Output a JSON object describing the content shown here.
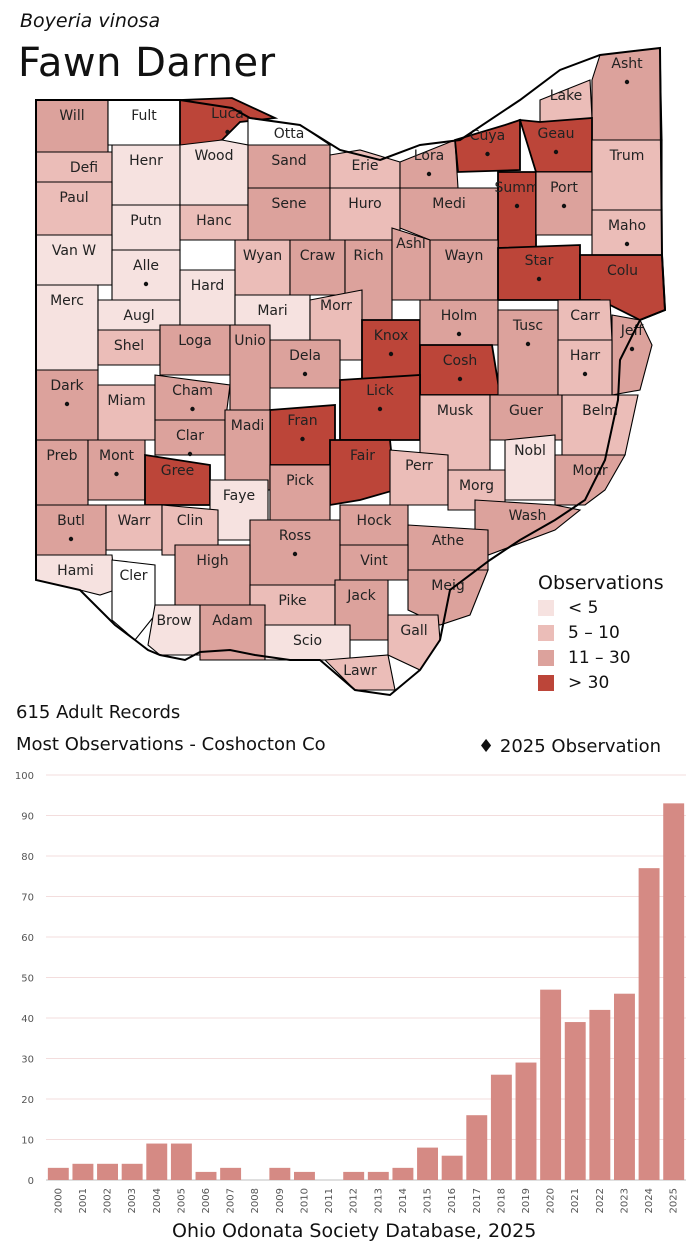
{
  "header": {
    "species": "Boyeria vinosa",
    "common_name": "Fawn Darner"
  },
  "colors": {
    "lt5": "#f6e2e0",
    "c5_10": "#ebbdb8",
    "c11_30": "#dca29c",
    "gt30": "#bc4539",
    "none": "#ffffff",
    "bar": "#d58a84"
  },
  "legend": {
    "title": "Observations",
    "items": [
      {
        "label": "< 5",
        "class": "lt5"
      },
      {
        "label": "5 – 10",
        "class": "c5_10"
      },
      {
        "label": "11 – 30",
        "class": "c11_30"
      },
      {
        "label": "> 30",
        "class": "gt30"
      }
    ]
  },
  "counties": [
    {
      "name": "Will",
      "class": "c11_30",
      "obs2025": false
    },
    {
      "name": "Fult",
      "class": "none",
      "obs2025": false
    },
    {
      "name": "Luca",
      "class": "gt30",
      "obs2025": true
    },
    {
      "name": "Otta",
      "class": "none",
      "obs2025": false
    },
    {
      "name": "Lake",
      "class": "c5_10",
      "obs2025": false
    },
    {
      "name": "Asht",
      "class": "c11_30",
      "obs2025": true
    },
    {
      "name": "Defi",
      "class": "c5_10",
      "obs2025": false
    },
    {
      "name": "Henr",
      "class": "lt5",
      "obs2025": false
    },
    {
      "name": "Wood",
      "class": "lt5",
      "obs2025": false
    },
    {
      "name": "Sand",
      "class": "c11_30",
      "obs2025": false
    },
    {
      "name": "Erie",
      "class": "c5_10",
      "obs2025": false
    },
    {
      "name": "Lora",
      "class": "c11_30",
      "obs2025": true
    },
    {
      "name": "Cuya",
      "class": "gt30",
      "obs2025": true
    },
    {
      "name": "Geau",
      "class": "gt30",
      "obs2025": true
    },
    {
      "name": "Trum",
      "class": "c5_10",
      "obs2025": false
    },
    {
      "name": "Paul",
      "class": "c5_10",
      "obs2025": false
    },
    {
      "name": "Putn",
      "class": "lt5",
      "obs2025": false
    },
    {
      "name": "Hanc",
      "class": "c5_10",
      "obs2025": false
    },
    {
      "name": "Sene",
      "class": "c11_30",
      "obs2025": false
    },
    {
      "name": "Huro",
      "class": "c5_10",
      "obs2025": false
    },
    {
      "name": "Medi",
      "class": "c11_30",
      "obs2025": false
    },
    {
      "name": "Summ",
      "class": "gt30",
      "obs2025": true
    },
    {
      "name": "Port",
      "class": "c11_30",
      "obs2025": true
    },
    {
      "name": "Maho",
      "class": "c5_10",
      "obs2025": true
    },
    {
      "name": "Van W",
      "class": "lt5",
      "obs2025": false
    },
    {
      "name": "Alle",
      "class": "lt5",
      "obs2025": true
    },
    {
      "name": "Wyan",
      "class": "c5_10",
      "obs2025": false
    },
    {
      "name": "Craw",
      "class": "c11_30",
      "obs2025": false
    },
    {
      "name": "Rich",
      "class": "c11_30",
      "obs2025": false
    },
    {
      "name": "Ashl",
      "class": "c11_30",
      "obs2025": false
    },
    {
      "name": "Wayn",
      "class": "c11_30",
      "obs2025": false
    },
    {
      "name": "Star",
      "class": "gt30",
      "obs2025": true
    },
    {
      "name": "Colu",
      "class": "gt30",
      "obs2025": false
    },
    {
      "name": "Merc",
      "class": "lt5",
      "obs2025": false
    },
    {
      "name": "Augl",
      "class": "lt5",
      "obs2025": false
    },
    {
      "name": "Hard",
      "class": "lt5",
      "obs2025": false
    },
    {
      "name": "Mari",
      "class": "lt5",
      "obs2025": false
    },
    {
      "name": "Morr",
      "class": "c5_10",
      "obs2025": false
    },
    {
      "name": "Knox",
      "class": "gt30",
      "obs2025": true
    },
    {
      "name": "Holm",
      "class": "c11_30",
      "obs2025": true
    },
    {
      "name": "Carr",
      "class": "c5_10",
      "obs2025": false
    },
    {
      "name": "Jeff",
      "class": "c11_30",
      "obs2025": true
    },
    {
      "name": "Shel",
      "class": "c5_10",
      "obs2025": false
    },
    {
      "name": "Loga",
      "class": "c11_30",
      "obs2025": false
    },
    {
      "name": "Dela",
      "class": "c11_30",
      "obs2025": true
    },
    {
      "name": "Cosh",
      "class": "gt30",
      "obs2025": true
    },
    {
      "name": "Tusc",
      "class": "c11_30",
      "obs2025": true
    },
    {
      "name": "Harr",
      "class": "c5_10",
      "obs2025": true
    },
    {
      "name": "Dark",
      "class": "c11_30",
      "obs2025": true
    },
    {
      "name": "Miam",
      "class": "c5_10",
      "obs2025": false
    },
    {
      "name": "Cham",
      "class": "c11_30",
      "obs2025": true
    },
    {
      "name": "Unio",
      "class": "c11_30",
      "obs2025": false
    },
    {
      "name": "Lick",
      "class": "gt30",
      "obs2025": true
    },
    {
      "name": "Musk",
      "class": "c5_10",
      "obs2025": false
    },
    {
      "name": "Guer",
      "class": "c11_30",
      "obs2025": false
    },
    {
      "name": "Belm",
      "class": "c5_10",
      "obs2025": false
    },
    {
      "name": "Clar",
      "class": "c11_30",
      "obs2025": true
    },
    {
      "name": "Fran",
      "class": "gt30",
      "obs2025": true
    },
    {
      "name": "Madi",
      "class": "c11_30",
      "obs2025": false
    },
    {
      "name": "Fair",
      "class": "gt30",
      "obs2025": false
    },
    {
      "name": "Perr",
      "class": "c5_10",
      "obs2025": false
    },
    {
      "name": "Nobl",
      "class": "lt5",
      "obs2025": false
    },
    {
      "name": "Monr",
      "class": "c11_30",
      "obs2025": false
    },
    {
      "name": "Preb",
      "class": "c11_30",
      "obs2025": false
    },
    {
      "name": "Mont",
      "class": "c11_30",
      "obs2025": true
    },
    {
      "name": "Gree",
      "class": "gt30",
      "obs2025": false
    },
    {
      "name": "Faye",
      "class": "lt5",
      "obs2025": false
    },
    {
      "name": "Pick",
      "class": "c11_30",
      "obs2025": false
    },
    {
      "name": "Morg",
      "class": "c5_10",
      "obs2025": false
    },
    {
      "name": "Butl",
      "class": "c11_30",
      "obs2025": true
    },
    {
      "name": "Warr",
      "class": "c5_10",
      "obs2025": false
    },
    {
      "name": "Clin",
      "class": "c5_10",
      "obs2025": false
    },
    {
      "name": "Ross",
      "class": "c11_30",
      "obs2025": true
    },
    {
      "name": "Hock",
      "class": "c11_30",
      "obs2025": false
    },
    {
      "name": "Wash",
      "class": "c11_30",
      "obs2025": false
    },
    {
      "name": "Athe",
      "class": "c11_30",
      "obs2025": false
    },
    {
      "name": "Hami",
      "class": "lt5",
      "obs2025": false
    },
    {
      "name": "Cler",
      "class": "none",
      "obs2025": false
    },
    {
      "name": "High",
      "class": "c11_30",
      "obs2025": false
    },
    {
      "name": "Vint",
      "class": "c11_30",
      "obs2025": false
    },
    {
      "name": "Meig",
      "class": "c11_30",
      "obs2025": false
    },
    {
      "name": "Pike",
      "class": "c5_10",
      "obs2025": false
    },
    {
      "name": "Jack",
      "class": "c11_30",
      "obs2025": false
    },
    {
      "name": "Brow",
      "class": "lt5",
      "obs2025": false
    },
    {
      "name": "Adam",
      "class": "c11_30",
      "obs2025": false
    },
    {
      "name": "Scio",
      "class": "lt5",
      "obs2025": false
    },
    {
      "name": "Gall",
      "class": "c5_10",
      "obs2025": false
    },
    {
      "name": "Lawr",
      "class": "c5_10",
      "obs2025": false
    }
  ],
  "summary": {
    "records": "615 Adult Records",
    "most": "Most Observations - Coshocton Co",
    "obs_note": "2025  Observation"
  },
  "chart_data": {
    "type": "bar",
    "title": "",
    "xlabel": "",
    "ylabel": "",
    "ylim": [
      0,
      100
    ],
    "yticks": [
      0,
      10,
      20,
      30,
      40,
      50,
      60,
      70,
      80,
      90,
      100
    ],
    "grid": true,
    "categories": [
      "2000",
      "2001",
      "2002",
      "2003",
      "2004",
      "2005",
      "2006",
      "2007",
      "2008",
      "2009",
      "2010",
      "2011",
      "2012",
      "2013",
      "2014",
      "2015",
      "2016",
      "2017",
      "2018",
      "2019",
      "2020",
      "2021",
      "2022",
      "2023",
      "2024",
      "2025"
    ],
    "values": [
      3,
      4,
      4,
      4,
      9,
      9,
      2,
      3,
      0,
      3,
      2,
      0,
      2,
      2,
      3,
      8,
      6,
      16,
      26,
      29,
      47,
      39,
      42,
      46,
      77,
      93
    ]
  },
  "footer": "Ohio Odonata Society Database, 2025"
}
